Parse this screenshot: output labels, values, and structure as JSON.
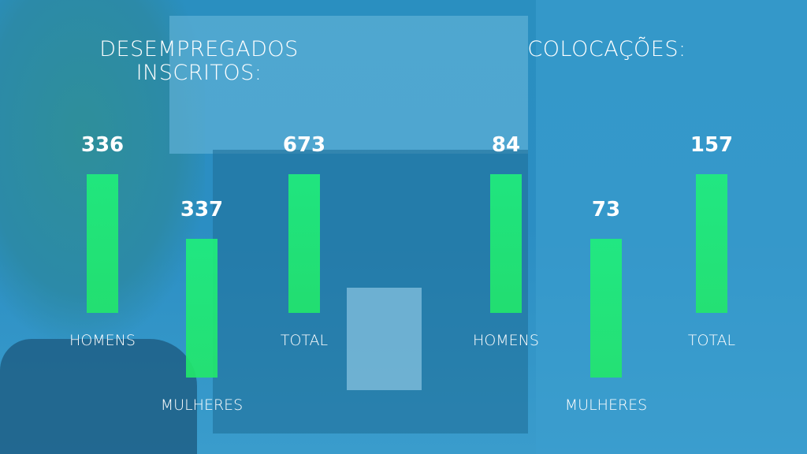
{
  "panels": [
    {
      "title": "DESEMPREGADOS INSCRITOS:",
      "items": [
        {
          "value": 336,
          "label": "HOMENS"
        },
        {
          "value": 337,
          "label": "MULHERES"
        },
        {
          "value": 673,
          "label": "TOTAL"
        }
      ]
    },
    {
      "title": "COLOCAÇÕES:",
      "items": [
        {
          "value": 84,
          "label": "HOMENS"
        },
        {
          "value": 73,
          "label": "MULHERES"
        },
        {
          "value": 157,
          "label": "TOTAL"
        }
      ]
    }
  ]
}
